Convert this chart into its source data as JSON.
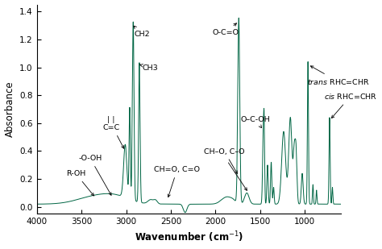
{
  "xlabel": "Wavenumber (cm$^{-1}$)",
  "ylabel": "Absorbance",
  "xlim": [
    600,
    4000
  ],
  "ylim": [
    -0.05,
    1.45
  ],
  "yticks": [
    0.0,
    0.2,
    0.4,
    0.6,
    0.8,
    1.0,
    1.2,
    1.4
  ],
  "xticks": [
    1000,
    1500,
    2000,
    2500,
    3000,
    3500,
    4000
  ],
  "line_color": "#006644",
  "background_color": "#ffffff"
}
